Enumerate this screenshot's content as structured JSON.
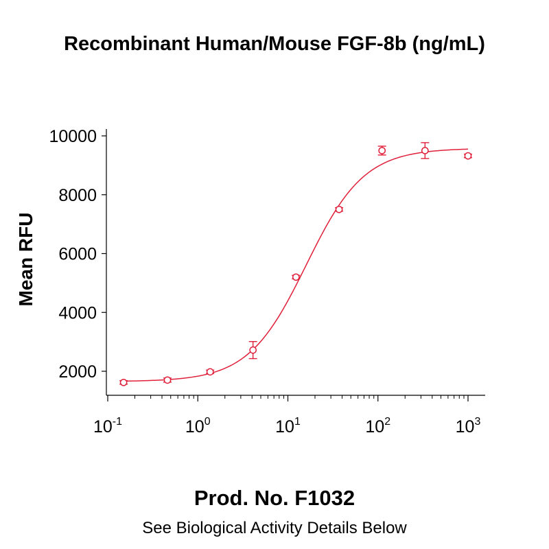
{
  "chart_data": {
    "type": "scatter",
    "title": "Recombinant Human/Mouse FGF-8b (ng/mL)",
    "ylabel": "Mean RFU",
    "xscale": "log",
    "xlim": [
      0.1,
      1000
    ],
    "ylim": [
      1200,
      10000
    ],
    "y_ticks": [
      "2000",
      "4000",
      "6000",
      "8000",
      "10000"
    ],
    "x_ticks": [
      {
        "base": "10",
        "exp": "-1"
      },
      {
        "base": "10",
        "exp": "0"
      },
      {
        "base": "10",
        "exp": "1"
      },
      {
        "base": "10",
        "exp": "2"
      },
      {
        "base": "10",
        "exp": "3"
      }
    ],
    "series": [
      {
        "color": "#e0203a",
        "x": [
          0.15,
          0.46,
          1.37,
          4.1,
          12.3,
          37,
          111,
          333,
          1000
        ],
        "y": [
          1620,
          1700,
          1980,
          2720,
          5200,
          7500,
          9500,
          9500,
          9320
        ],
        "err": [
          60,
          70,
          60,
          290,
          60,
          60,
          150,
          270,
          60
        ]
      }
    ],
    "fit": {
      "type": "4PL",
      "bottom": 1650,
      "top": 9580,
      "ec50": 16,
      "hill": 1.35,
      "color": "#e0203a"
    },
    "grid": false,
    "legend": "none"
  },
  "footer": {
    "product": "Prod. No. F1032",
    "note": "See Biological Activity Details Below"
  }
}
